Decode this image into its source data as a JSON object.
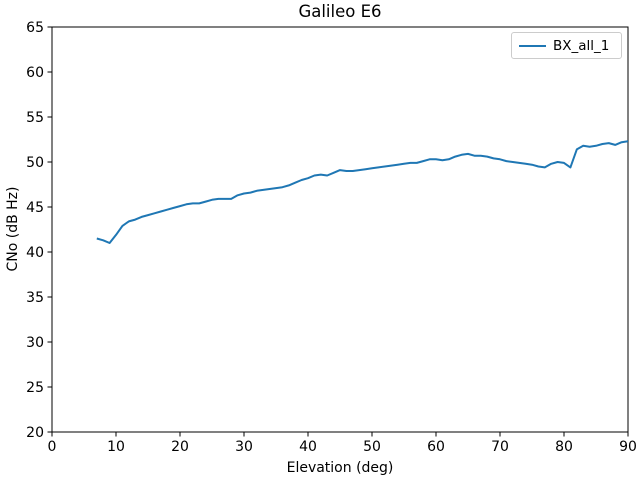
{
  "title": "Galileo E6",
  "xlabel": "Elevation (deg)",
  "ylabel": "CNo (dB Hz)",
  "legend": {
    "position": "upper right",
    "entries": [
      {
        "label": "BX_all_1",
        "color": "#1f77b4"
      }
    ]
  },
  "chart_data": {
    "type": "line",
    "title": "Galileo E6",
    "xlabel": "Elevation (deg)",
    "ylabel": "CNo (dB Hz)",
    "xlim": [
      0,
      90
    ],
    "ylim": [
      20,
      65
    ],
    "xticks": [
      0,
      10,
      20,
      30,
      40,
      50,
      60,
      70,
      80,
      90
    ],
    "yticks": [
      20,
      25,
      30,
      35,
      40,
      45,
      50,
      55,
      60,
      65
    ],
    "grid": false,
    "legend_position": "upper right",
    "series": [
      {
        "name": "BX_all_1",
        "color": "#1f77b4",
        "x": [
          7,
          8,
          9,
          10,
          11,
          12,
          13,
          14,
          15,
          16,
          17,
          18,
          19,
          20,
          21,
          22,
          23,
          24,
          25,
          26,
          27,
          28,
          29,
          30,
          31,
          32,
          33,
          34,
          35,
          36,
          37,
          38,
          39,
          40,
          41,
          42,
          43,
          44,
          45,
          46,
          47,
          48,
          49,
          50,
          51,
          52,
          53,
          54,
          55,
          56,
          57,
          58,
          59,
          60,
          61,
          62,
          63,
          64,
          65,
          66,
          67,
          68,
          69,
          70,
          71,
          72,
          73,
          74,
          75,
          76,
          77,
          78,
          79,
          80,
          81,
          82,
          83,
          84,
          85,
          86,
          87,
          88,
          89,
          90
        ],
        "y": [
          41.5,
          41.3,
          41.0,
          41.9,
          42.9,
          43.4,
          43.6,
          43.9,
          44.1,
          44.3,
          44.5,
          44.7,
          44.9,
          45.1,
          45.3,
          45.4,
          45.4,
          45.6,
          45.8,
          45.9,
          45.9,
          45.9,
          46.3,
          46.5,
          46.6,
          46.8,
          46.9,
          47.0,
          47.1,
          47.2,
          47.4,
          47.7,
          48.0,
          48.2,
          48.5,
          48.6,
          48.5,
          48.8,
          49.1,
          49.0,
          49.0,
          49.1,
          49.2,
          49.3,
          49.4,
          49.5,
          49.6,
          49.7,
          49.8,
          49.9,
          49.9,
          50.1,
          50.3,
          50.3,
          50.2,
          50.3,
          50.6,
          50.8,
          50.9,
          50.7,
          50.7,
          50.6,
          50.4,
          50.3,
          50.1,
          50.0,
          49.9,
          49.8,
          49.7,
          49.5,
          49.4,
          49.8,
          50.0,
          49.9,
          49.4,
          51.4,
          51.8,
          51.7,
          51.8,
          52.0,
          52.1,
          51.9,
          52.2,
          52.3
        ]
      }
    ]
  }
}
